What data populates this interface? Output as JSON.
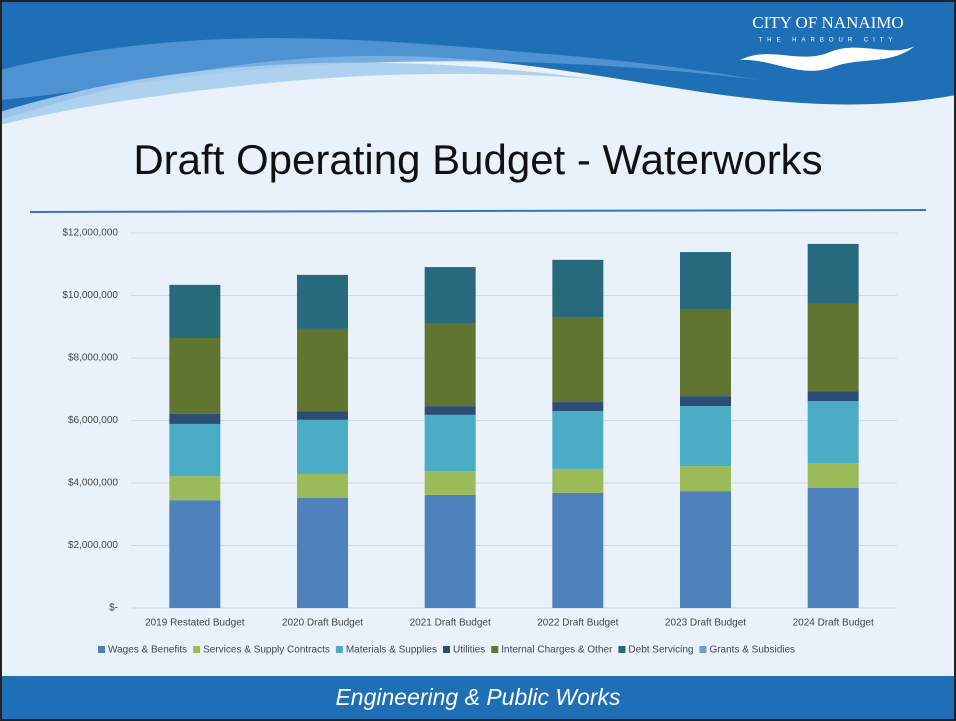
{
  "logo": {
    "name": "CITY OF NANAIMO",
    "tagline": "THE HARBOUR CITY"
  },
  "footer": "Engineering & Public Works",
  "chart_data": {
    "type": "bar",
    "stacked": true,
    "title": "Draft Operating Budget - Waterworks",
    "categories": [
      "2019 Restated Budget",
      "2020 Draft Budget",
      "2021 Draft Budget",
      "2022 Draft Budget",
      "2023 Draft Budget",
      "2024 Draft Budget"
    ],
    "series": [
      {
        "name": "Wages & Benefits",
        "color": "#4f81bd",
        "values": [
          3450000,
          3520000,
          3620000,
          3680000,
          3740000,
          3840000
        ]
      },
      {
        "name": "Services & Supply Contracts",
        "color": "#9bbb59",
        "values": [
          770000,
          770000,
          760000,
          770000,
          800000,
          800000
        ]
      },
      {
        "name": "Materials & Supplies",
        "color": "#4bacc6",
        "values": [
          1670000,
          1730000,
          1800000,
          1850000,
          1920000,
          1980000
        ]
      },
      {
        "name": "Utilities",
        "color": "#2c4d75",
        "values": [
          320000,
          280000,
          280000,
          290000,
          320000,
          320000
        ]
      },
      {
        "name": "Internal Charges & Other",
        "color": "#5f7530",
        "values": [
          2430000,
          2630000,
          2660000,
          2720000,
          2760000,
          2790000
        ]
      },
      {
        "name": "Debt Servicing",
        "color": "#276a7c",
        "values": [
          1700000,
          1730000,
          1790000,
          1830000,
          1850000,
          1920000
        ]
      },
      {
        "name": "Grants & Subsidies",
        "color": "#729aca",
        "values": [
          0,
          0,
          0,
          0,
          0,
          0
        ]
      }
    ],
    "ylim": [
      0,
      12000000
    ],
    "yticks": [
      {
        "value": 0,
        "label": "$-"
      },
      {
        "value": 2000000,
        "label": "$2,000,000"
      },
      {
        "value": 4000000,
        "label": "$4,000,000"
      },
      {
        "value": 6000000,
        "label": "$6,000,000"
      },
      {
        "value": 8000000,
        "label": "$8,000,000"
      },
      {
        "value": 10000000,
        "label": "$10,000,000"
      },
      {
        "value": 12000000,
        "label": "$12,000,000"
      }
    ],
    "grid": true,
    "legend": "bottom"
  }
}
